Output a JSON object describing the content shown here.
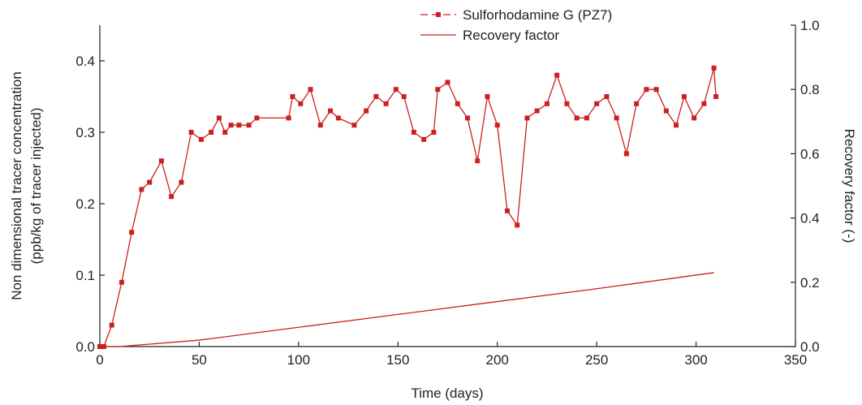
{
  "chart_data": {
    "type": "line",
    "xlabel": "Time (days)",
    "ylabel": [
      "Non dimensional tracer concentration",
      "(ppb/kg of tracer injected)"
    ],
    "y2label": "Recovery factor (-)",
    "xlim": [
      0,
      350
    ],
    "xticks": [
      0,
      50,
      100,
      150,
      200,
      250,
      300,
      350
    ],
    "ylim": [
      0,
      0.45
    ],
    "yticks": [
      {
        "value": 0,
        "label": "0.0"
      },
      0.1,
      0.2,
      0.3,
      0.4
    ],
    "y2lim": [
      0,
      1
    ],
    "y2ticks": [
      {
        "value": 0,
        "label": "0.0"
      },
      0.2,
      0.4,
      0.6,
      0.8,
      {
        "value": 1,
        "label": "1.0"
      }
    ],
    "grid": false,
    "legend": "top",
    "series": [
      {
        "name": "Sulforhodamine G (PZ7)",
        "color": "#cc1f1f",
        "marker": "square",
        "x": [
          0,
          2,
          6,
          11,
          16,
          21,
          25,
          31,
          36,
          41,
          46,
          51,
          56,
          60,
          63,
          66,
          70,
          75,
          79,
          95,
          97,
          101,
          106,
          111,
          116,
          120,
          128,
          134,
          139,
          144,
          149,
          153,
          158,
          163,
          168,
          170,
          175,
          180,
          185,
          190,
          195,
          200,
          205,
          210,
          215,
          220,
          225,
          230,
          235,
          240,
          245,
          250,
          255,
          260,
          265,
          270,
          275,
          280,
          285,
          290,
          294,
          299,
          304,
          309,
          310
        ],
        "values": [
          0,
          0,
          0.03,
          0.09,
          0.16,
          0.22,
          0.23,
          0.26,
          0.21,
          0.23,
          0.3,
          0.29,
          0.3,
          0.32,
          0.3,
          0.31,
          0.31,
          0.31,
          0.32,
          0.32,
          0.35,
          0.34,
          0.36,
          0.31,
          0.33,
          0.32,
          0.31,
          0.33,
          0.35,
          0.34,
          0.36,
          0.35,
          0.3,
          0.29,
          0.3,
          0.36,
          0.37,
          0.34,
          0.32,
          0.26,
          0.35,
          0.31,
          0.19,
          0.17,
          0.32,
          0.33,
          0.34,
          0.38,
          0.34,
          0.32,
          0.32,
          0.34,
          0.35,
          0.32,
          0.27,
          0.34,
          0.36,
          0.36,
          0.33,
          0.31,
          0.35,
          0.32,
          0.34,
          0.39,
          0.35
        ]
      },
      {
        "name": "Recovery factor",
        "color": "#cc1f1f",
        "axis": "y2",
        "x": [
          0,
          10,
          50,
          100,
          150,
          200,
          250,
          309
        ],
        "values": [
          0,
          0,
          0.02,
          0.06,
          0.1,
          0.14,
          0.18,
          0.23
        ]
      }
    ]
  }
}
